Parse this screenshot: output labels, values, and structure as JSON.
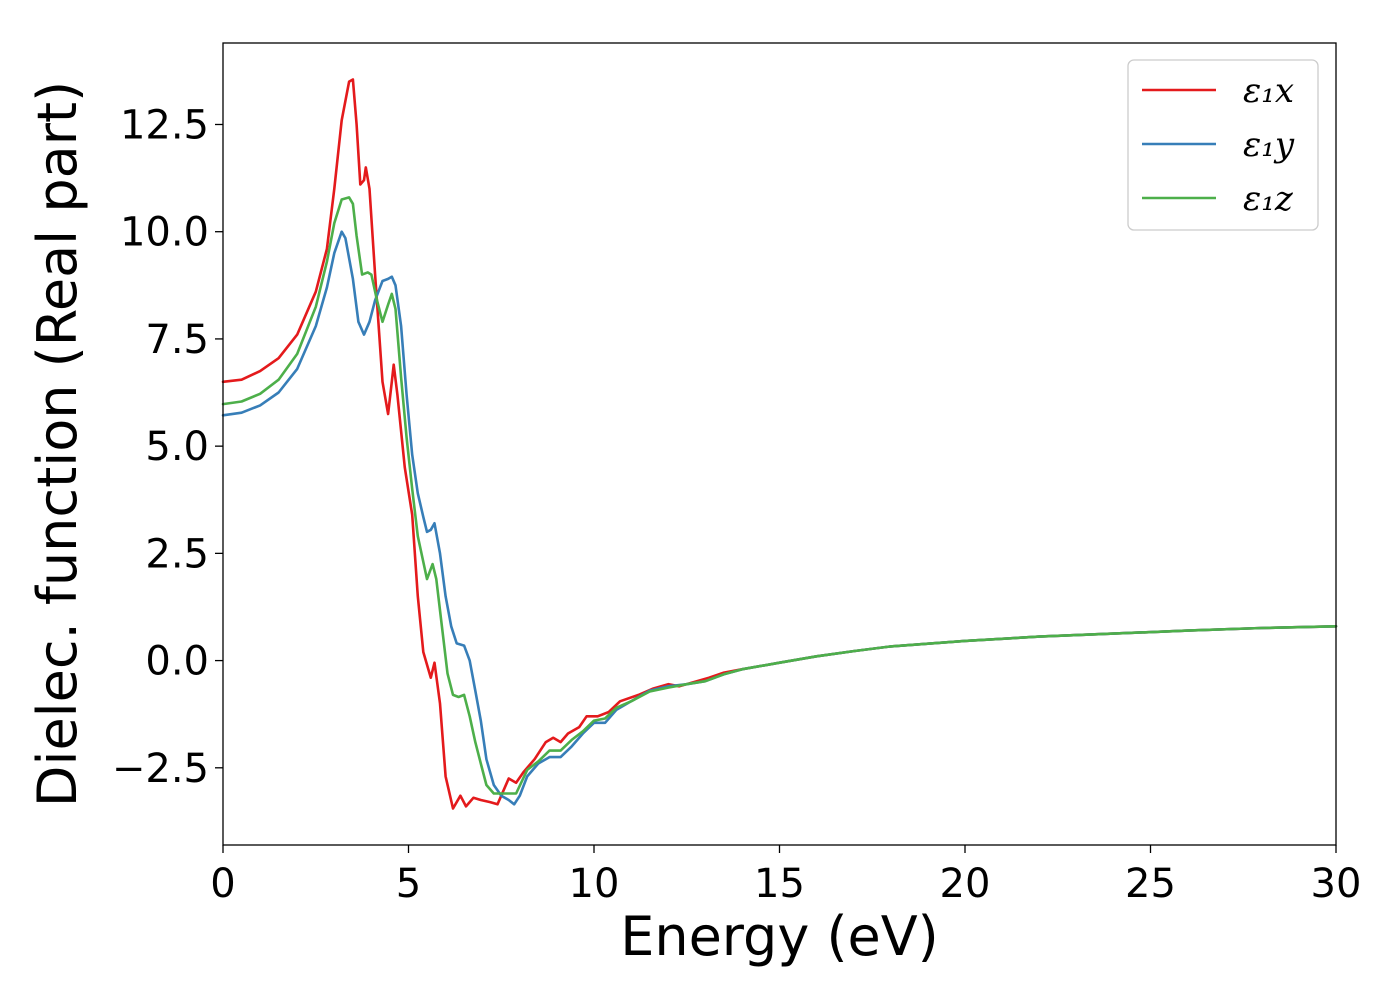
{
  "chart_data": {
    "type": "line",
    "title": "",
    "xlabel": "Energy (eV)",
    "ylabel": "Dielec. function (Real part)",
    "xlim": [
      0,
      30
    ],
    "ylim": [
      -4.3,
      14.4
    ],
    "xticks": [
      {
        "value": 0,
        "label": "0"
      },
      {
        "value": 5,
        "label": "5"
      },
      {
        "value": 10,
        "label": "10"
      },
      {
        "value": 15,
        "label": "15"
      },
      {
        "value": 20,
        "label": "20"
      },
      {
        "value": 25,
        "label": "25"
      },
      {
        "value": 30,
        "label": "30"
      }
    ],
    "yticks": [
      {
        "value": -2.5,
        "label": "−2.5"
      },
      {
        "value": 0,
        "label": "0.0"
      },
      {
        "value": 2.5,
        "label": "2.5"
      },
      {
        "value": 5,
        "label": "5.0"
      },
      {
        "value": 7.5,
        "label": "7.5"
      },
      {
        "value": 10,
        "label": "10.0"
      },
      {
        "value": 12.5,
        "label": "12.5"
      }
    ],
    "grid": false,
    "legend_position": "top-right",
    "series": [
      {
        "name": "ε₁x",
        "color": "#e41a1c",
        "points": [
          [
            0,
            6.5
          ],
          [
            0.5,
            6.55
          ],
          [
            1,
            6.75
          ],
          [
            1.5,
            7.05
          ],
          [
            2,
            7.6
          ],
          [
            2.5,
            8.6
          ],
          [
            2.8,
            9.6
          ],
          [
            3.0,
            11.0
          ],
          [
            3.2,
            12.6
          ],
          [
            3.4,
            13.5
          ],
          [
            3.5,
            13.55
          ],
          [
            3.6,
            12.5
          ],
          [
            3.7,
            11.1
          ],
          [
            3.8,
            11.2
          ],
          [
            3.85,
            11.5
          ],
          [
            3.95,
            11.0
          ],
          [
            4.1,
            9.0
          ],
          [
            4.3,
            6.5
          ],
          [
            4.45,
            5.75
          ],
          [
            4.55,
            6.5
          ],
          [
            4.6,
            6.9
          ],
          [
            4.7,
            6.2
          ],
          [
            4.9,
            4.5
          ],
          [
            5.1,
            3.4
          ],
          [
            5.25,
            1.5
          ],
          [
            5.4,
            0.2
          ],
          [
            5.6,
            -0.4
          ],
          [
            5.7,
            -0.05
          ],
          [
            5.85,
            -1.0
          ],
          [
            6.0,
            -2.7
          ],
          [
            6.2,
            -3.45
          ],
          [
            6.4,
            -3.15
          ],
          [
            6.55,
            -3.4
          ],
          [
            6.75,
            -3.2
          ],
          [
            6.95,
            -3.25
          ],
          [
            7.2,
            -3.3
          ],
          [
            7.4,
            -3.35
          ],
          [
            7.7,
            -2.75
          ],
          [
            7.9,
            -2.85
          ],
          [
            8.1,
            -2.6
          ],
          [
            8.4,
            -2.3
          ],
          [
            8.7,
            -1.9
          ],
          [
            8.9,
            -1.8
          ],
          [
            9.1,
            -1.9
          ],
          [
            9.3,
            -1.7
          ],
          [
            9.6,
            -1.55
          ],
          [
            9.8,
            -1.3
          ],
          [
            10.1,
            -1.3
          ],
          [
            10.4,
            -1.2
          ],
          [
            10.7,
            -0.95
          ],
          [
            11.2,
            -0.8
          ],
          [
            11.6,
            -0.65
          ],
          [
            12.0,
            -0.55
          ],
          [
            12.3,
            -0.6
          ],
          [
            12.7,
            -0.5
          ],
          [
            13.1,
            -0.4
          ],
          [
            13.5,
            -0.28
          ],
          [
            14.0,
            -0.2
          ],
          [
            15.0,
            -0.05
          ],
          [
            16.0,
            0.1
          ],
          [
            17.0,
            0.22
          ],
          [
            18.0,
            0.33
          ],
          [
            20.0,
            0.46
          ],
          [
            22.0,
            0.56
          ],
          [
            24.0,
            0.63
          ],
          [
            26.0,
            0.7
          ],
          [
            28.0,
            0.76
          ],
          [
            30.0,
            0.8
          ]
        ]
      },
      {
        "name": "ε₁y",
        "color": "#377eb8",
        "points": [
          [
            0,
            5.72
          ],
          [
            0.5,
            5.78
          ],
          [
            1,
            5.95
          ],
          [
            1.5,
            6.25
          ],
          [
            2,
            6.8
          ],
          [
            2.5,
            7.8
          ],
          [
            2.8,
            8.7
          ],
          [
            3.0,
            9.5
          ],
          [
            3.2,
            10.0
          ],
          [
            3.3,
            9.85
          ],
          [
            3.5,
            8.9
          ],
          [
            3.65,
            7.9
          ],
          [
            3.8,
            7.6
          ],
          [
            3.95,
            7.9
          ],
          [
            4.1,
            8.4
          ],
          [
            4.3,
            8.85
          ],
          [
            4.45,
            8.9
          ],
          [
            4.55,
            8.95
          ],
          [
            4.65,
            8.75
          ],
          [
            4.8,
            7.8
          ],
          [
            4.95,
            6.2
          ],
          [
            5.1,
            4.8
          ],
          [
            5.25,
            3.9
          ],
          [
            5.4,
            3.35
          ],
          [
            5.5,
            3.0
          ],
          [
            5.6,
            3.05
          ],
          [
            5.7,
            3.2
          ],
          [
            5.85,
            2.5
          ],
          [
            6.0,
            1.5
          ],
          [
            6.15,
            0.8
          ],
          [
            6.3,
            0.4
          ],
          [
            6.5,
            0.35
          ],
          [
            6.65,
            0.0
          ],
          [
            6.8,
            -0.7
          ],
          [
            6.95,
            -1.4
          ],
          [
            7.1,
            -2.3
          ],
          [
            7.3,
            -2.9
          ],
          [
            7.5,
            -3.15
          ],
          [
            7.7,
            -3.25
          ],
          [
            7.85,
            -3.35
          ],
          [
            8.0,
            -3.15
          ],
          [
            8.2,
            -2.7
          ],
          [
            8.5,
            -2.4
          ],
          [
            8.8,
            -2.25
          ],
          [
            9.1,
            -2.25
          ],
          [
            9.4,
            -2.0
          ],
          [
            9.7,
            -1.7
          ],
          [
            10.0,
            -1.45
          ],
          [
            10.3,
            -1.45
          ],
          [
            10.6,
            -1.15
          ],
          [
            11.0,
            -0.95
          ],
          [
            11.5,
            -0.7
          ],
          [
            12.0,
            -0.6
          ],
          [
            12.5,
            -0.55
          ],
          [
            13.0,
            -0.48
          ],
          [
            13.5,
            -0.32
          ],
          [
            14.0,
            -0.2
          ],
          [
            15.0,
            -0.05
          ],
          [
            16.0,
            0.1
          ],
          [
            17.0,
            0.22
          ],
          [
            18.0,
            0.33
          ],
          [
            20.0,
            0.46
          ],
          [
            22.0,
            0.56
          ],
          [
            24.0,
            0.63
          ],
          [
            26.0,
            0.7
          ],
          [
            28.0,
            0.76
          ],
          [
            30.0,
            0.8
          ]
        ]
      },
      {
        "name": "ε₁z",
        "color": "#4daf4a",
        "points": [
          [
            0,
            5.98
          ],
          [
            0.5,
            6.04
          ],
          [
            1,
            6.22
          ],
          [
            1.5,
            6.55
          ],
          [
            2,
            7.15
          ],
          [
            2.5,
            8.25
          ],
          [
            2.8,
            9.3
          ],
          [
            3.0,
            10.2
          ],
          [
            3.2,
            10.75
          ],
          [
            3.4,
            10.8
          ],
          [
            3.5,
            10.65
          ],
          [
            3.6,
            9.9
          ],
          [
            3.75,
            9.0
          ],
          [
            3.9,
            9.05
          ],
          [
            4.0,
            9.0
          ],
          [
            4.15,
            8.4
          ],
          [
            4.3,
            7.9
          ],
          [
            4.45,
            8.3
          ],
          [
            4.55,
            8.55
          ],
          [
            4.65,
            8.2
          ],
          [
            4.8,
            6.6
          ],
          [
            4.95,
            5.2
          ],
          [
            5.1,
            4.0
          ],
          [
            5.25,
            2.9
          ],
          [
            5.4,
            2.3
          ],
          [
            5.5,
            1.9
          ],
          [
            5.65,
            2.25
          ],
          [
            5.75,
            1.9
          ],
          [
            5.9,
            0.8
          ],
          [
            6.05,
            -0.3
          ],
          [
            6.2,
            -0.8
          ],
          [
            6.35,
            -0.85
          ],
          [
            6.5,
            -0.8
          ],
          [
            6.65,
            -1.3
          ],
          [
            6.8,
            -1.9
          ],
          [
            6.95,
            -2.4
          ],
          [
            7.1,
            -2.9
          ],
          [
            7.3,
            -3.1
          ],
          [
            7.6,
            -3.1
          ],
          [
            7.9,
            -3.1
          ],
          [
            8.2,
            -2.55
          ],
          [
            8.5,
            -2.35
          ],
          [
            8.8,
            -2.1
          ],
          [
            9.1,
            -2.1
          ],
          [
            9.4,
            -1.85
          ],
          [
            9.7,
            -1.65
          ],
          [
            10.0,
            -1.4
          ],
          [
            10.3,
            -1.35
          ],
          [
            10.6,
            -1.1
          ],
          [
            11.0,
            -0.95
          ],
          [
            11.5,
            -0.72
          ],
          [
            12.0,
            -0.63
          ],
          [
            12.5,
            -0.55
          ],
          [
            13.0,
            -0.48
          ],
          [
            13.5,
            -0.32
          ],
          [
            14.0,
            -0.2
          ],
          [
            15.0,
            -0.05
          ],
          [
            16.0,
            0.1
          ],
          [
            17.0,
            0.22
          ],
          [
            18.0,
            0.33
          ],
          [
            20.0,
            0.46
          ],
          [
            22.0,
            0.56
          ],
          [
            24.0,
            0.63
          ],
          [
            26.0,
            0.7
          ],
          [
            28.0,
            0.76
          ],
          [
            30.0,
            0.8
          ]
        ]
      }
    ]
  }
}
